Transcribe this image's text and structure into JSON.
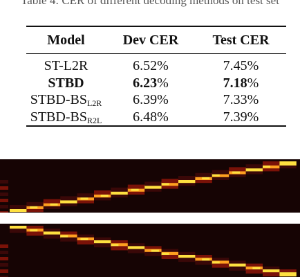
{
  "caption_fragment": "Table 4: CER of different decoding methods on test set",
  "table": {
    "headers": [
      "Model",
      "Dev CER",
      "Test CER"
    ],
    "rows": [
      {
        "model": "ST-L2R",
        "model_sub": "",
        "dev_num": "6.52",
        "test_num": "7.45",
        "pct": "%",
        "bold": false
      },
      {
        "model": "STBD",
        "model_sub": "",
        "dev_num": "6.23",
        "test_num": "7.18",
        "pct": "%",
        "bold": true
      },
      {
        "model": "STBD-BS",
        "model_sub": "L2R",
        "dev_num": "6.39",
        "test_num": "7.33",
        "pct": "%",
        "bold": false
      },
      {
        "model": "STBD-BS",
        "model_sub": "R2L",
        "dev_num": "6.48",
        "test_num": "7.39",
        "pct": "%",
        "bold": false
      }
    ]
  },
  "heatmaps": {
    "background": "#160404",
    "palette": [
      "#3a0808",
      "#7a1208",
      "#c0200c",
      "#ff4a10",
      "#ffa020",
      "#ffe040"
    ],
    "top": {
      "direction": "ascending",
      "path": [
        [
          0,
          16,
          5
        ],
        [
          1,
          15,
          4
        ],
        [
          2,
          14,
          4
        ],
        [
          3,
          13,
          5
        ],
        [
          4,
          12,
          4
        ],
        [
          5,
          11,
          4
        ],
        [
          6,
          10,
          5
        ],
        [
          7,
          9,
          4
        ],
        [
          8,
          8,
          5
        ],
        [
          9,
          7,
          4
        ],
        [
          10,
          6,
          5
        ],
        [
          11,
          5,
          4
        ],
        [
          12,
          4,
          4
        ],
        [
          13,
          3,
          4
        ],
        [
          14,
          2,
          5
        ],
        [
          15,
          1,
          4
        ],
        [
          16,
          0,
          5
        ]
      ]
    },
    "bottom": {
      "direction": "descending",
      "path": [
        [
          0,
          0,
          5
        ],
        [
          1,
          1,
          4
        ],
        [
          2,
          2,
          5
        ],
        [
          3,
          3,
          4
        ],
        [
          4,
          4,
          4
        ],
        [
          5,
          5,
          5
        ],
        [
          6,
          6,
          4
        ],
        [
          7,
          7,
          5
        ],
        [
          8,
          8,
          4
        ],
        [
          9,
          9,
          4
        ],
        [
          10,
          10,
          5
        ],
        [
          11,
          11,
          4
        ],
        [
          12,
          12,
          4
        ],
        [
          13,
          13,
          5
        ],
        [
          14,
          14,
          4
        ],
        [
          15,
          15,
          5
        ],
        [
          16,
          16,
          5
        ]
      ]
    }
  }
}
